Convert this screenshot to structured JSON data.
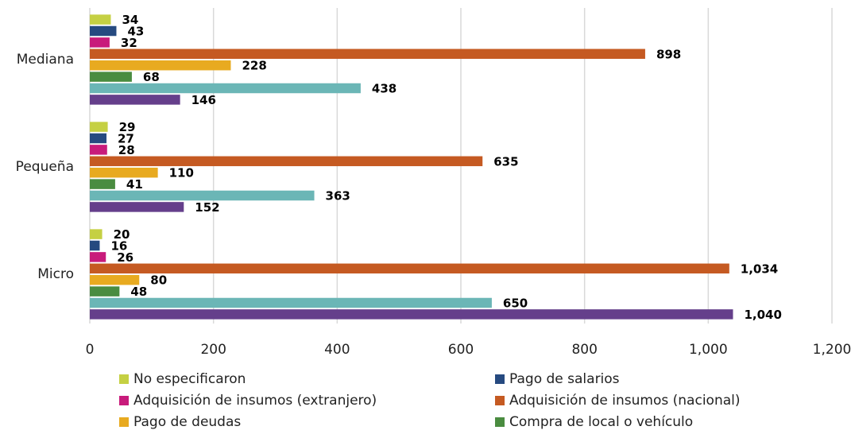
{
  "chart_data": {
    "type": "hbar",
    "categories": [
      "Mediana",
      "Pequeña",
      "Micro"
    ],
    "series": [
      {
        "name": "No especificaron",
        "color": "#c5d043",
        "values": [
          34,
          29,
          20
        ]
      },
      {
        "name": "Pago de salarios",
        "color": "#264a80",
        "values": [
          43,
          27,
          16
        ]
      },
      {
        "name": "Adquisición de insumos (extranjero)",
        "color": "#c81b7b",
        "values": [
          32,
          28,
          26
        ]
      },
      {
        "name": "Adquisición de insumos (nacional)",
        "color": "#c55a22",
        "values": [
          898,
          635,
          1034
        ],
        "value_labels": [
          "898",
          "635",
          "1,034"
        ]
      },
      {
        "name": "Pago de deudas",
        "color": "#e8aa20",
        "values": [
          228,
          110,
          80
        ]
      },
      {
        "name": "Compra de local o vehículo",
        "color": "#4a8c40",
        "values": [
          68,
          41,
          48
        ]
      },
      {
        "color": "#6bb6b6",
        "values": [
          438,
          363,
          650
        ]
      },
      {
        "color": "#653f8b",
        "values": [
          146,
          152,
          1040
        ],
        "value_labels": [
          "146",
          "152",
          "1,040"
        ]
      }
    ],
    "xlim": [
      0,
      1200
    ],
    "xticks": [
      0,
      200,
      400,
      600,
      800,
      {
        "value": 1000,
        "label": "1,000"
      },
      {
        "value": 1200,
        "label": "1,200"
      }
    ],
    "grid": true,
    "legend": "bottom"
  }
}
